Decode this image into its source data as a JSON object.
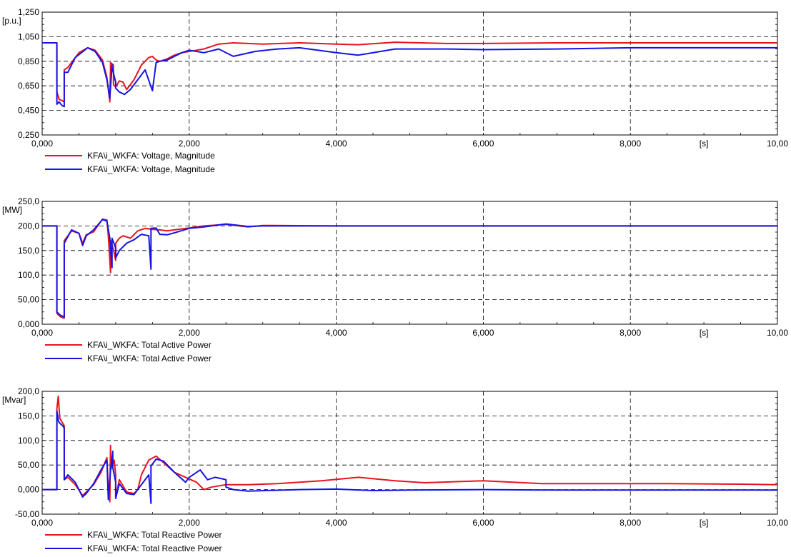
{
  "chart_data": [
    {
      "type": "line",
      "title": "",
      "xlabel": "[s]",
      "ylabel": "[p.u.]",
      "xlim": [
        0,
        10
      ],
      "ylim": [
        0.25,
        1.25
      ],
      "x_ticks": [
        "0,000",
        "2,000",
        "4,000",
        "6,000",
        "8,000",
        "10,00"
      ],
      "y_ticks": [
        "1,250",
        "1,050",
        "0,850",
        "0,650",
        "0,450",
        "0,250"
      ],
      "y_tick_values": [
        1.25,
        1.05,
        0.85,
        0.65,
        0.45,
        0.25
      ],
      "grid": true,
      "legend_position": "bottom-left",
      "series": [
        {
          "name": "KFA\\i_WKFA: Voltage, Magnitude",
          "color": "#e8141c",
          "x": [
            0.0,
            0.2,
            0.2,
            0.23,
            0.27,
            0.3,
            0.3,
            0.35,
            0.5,
            0.62,
            0.72,
            0.82,
            0.88,
            0.92,
            0.93,
            0.93,
            0.97,
            0.97,
            1.0,
            1.05,
            1.1,
            1.15,
            1.25,
            1.35,
            1.45,
            1.5,
            1.55,
            1.6,
            1.7,
            1.8,
            1.9,
            2.0,
            2.1,
            2.2,
            2.4,
            2.6,
            3.0,
            3.5,
            4.0,
            4.3,
            4.8,
            5.5,
            6.0,
            7.0,
            8.0,
            9.0,
            10.0
          ],
          "y": [
            1.0,
            1.0,
            0.6,
            0.54,
            0.53,
            0.52,
            0.78,
            0.8,
            0.92,
            0.96,
            0.94,
            0.86,
            0.72,
            0.52,
            0.8,
            0.84,
            0.82,
            0.66,
            0.64,
            0.69,
            0.68,
            0.62,
            0.7,
            0.82,
            0.88,
            0.89,
            0.86,
            0.85,
            0.87,
            0.9,
            0.92,
            0.93,
            0.94,
            0.95,
            0.99,
            1.0,
            0.99,
            1.0,
            0.99,
            0.985,
            1.005,
            0.995,
            0.995,
            1.0,
            1.0,
            1.0,
            1.0
          ]
        },
        {
          "name": "KFA\\i_WKFA: Voltage, Magnitude",
          "color": "#1414e6",
          "x": [
            0.0,
            0.2,
            0.2,
            0.23,
            0.27,
            0.3,
            0.3,
            0.35,
            0.45,
            0.62,
            0.72,
            0.82,
            0.88,
            0.92,
            0.95,
            0.95,
            1.0,
            1.0,
            1.05,
            1.12,
            1.2,
            1.3,
            1.4,
            1.5,
            1.55,
            1.6,
            1.7,
            1.8,
            1.9,
            2.0,
            2.2,
            2.4,
            2.6,
            2.9,
            3.2,
            3.5,
            4.0,
            4.3,
            4.8,
            5.5,
            6.0,
            7.0,
            8.0,
            9.0,
            10.0
          ],
          "y": [
            1.0,
            1.0,
            0.5,
            0.52,
            0.49,
            0.48,
            0.76,
            0.76,
            0.88,
            0.96,
            0.93,
            0.84,
            0.7,
            0.55,
            0.82,
            0.8,
            0.68,
            0.63,
            0.6,
            0.58,
            0.62,
            0.7,
            0.78,
            0.61,
            0.84,
            0.85,
            0.86,
            0.89,
            0.92,
            0.94,
            0.92,
            0.95,
            0.89,
            0.93,
            0.95,
            0.96,
            0.92,
            0.9,
            0.95,
            0.95,
            0.945,
            0.95,
            0.96,
            0.96,
            0.96
          ]
        }
      ]
    },
    {
      "type": "line",
      "title": "",
      "xlabel": "[s]",
      "ylabel": "[MW]",
      "xlim": [
        0,
        10
      ],
      "ylim": [
        0,
        250
      ],
      "x_ticks": [
        "0,000",
        "2,000",
        "4,000",
        "6,000",
        "8,000",
        "10,00"
      ],
      "y_ticks": [
        "250,0",
        "200,0",
        "150,0",
        "100,0",
        "50,00",
        "0,000"
      ],
      "y_tick_values": [
        250,
        200,
        150,
        100,
        50,
        0
      ],
      "grid": true,
      "legend_position": "bottom-left",
      "series": [
        {
          "name": "KFA\\i_WKFA: Total Active Power",
          "color": "#e8141c",
          "x": [
            0.0,
            0.2,
            0.2,
            0.25,
            0.3,
            0.3,
            0.4,
            0.5,
            0.55,
            0.6,
            0.7,
            0.82,
            0.88,
            0.9,
            0.93,
            0.93,
            0.97,
            1.0,
            1.0,
            1.05,
            1.1,
            1.2,
            1.3,
            1.4,
            1.5,
            1.6,
            1.7,
            1.8,
            2.0,
            2.2,
            2.5,
            2.8,
            3.0,
            4.0,
            5.0,
            6.0,
            7.0,
            8.0,
            9.0,
            10.0
          ],
          "y": [
            200,
            200,
            22,
            15,
            12,
            170,
            190,
            185,
            165,
            182,
            188,
            214,
            212,
            180,
            105,
            170,
            152,
            130,
            165,
            175,
            180,
            175,
            190,
            195,
            193,
            192,
            190,
            192,
            196,
            200,
            203,
            198,
            201,
            200,
            200,
            200,
            200,
            200,
            200,
            200
          ]
        },
        {
          "name": "KFA\\i_WKFA: Total Active Power",
          "color": "#1414e6",
          "x": [
            0.0,
            0.2,
            0.2,
            0.25,
            0.3,
            0.3,
            0.4,
            0.5,
            0.55,
            0.6,
            0.7,
            0.82,
            0.88,
            0.92,
            0.95,
            0.95,
            1.0,
            1.0,
            1.05,
            1.15,
            1.25,
            1.35,
            1.45,
            1.48,
            1.48,
            1.55,
            1.6,
            1.7,
            1.8,
            2.0,
            2.2,
            2.5,
            2.8,
            3.0,
            4.0,
            5.0,
            6.0,
            7.0,
            8.0,
            9.0,
            10.0
          ],
          "y": [
            200,
            200,
            25,
            18,
            15,
            165,
            192,
            185,
            160,
            180,
            192,
            213,
            210,
            175,
            115,
            175,
            155,
            135,
            150,
            165,
            172,
            183,
            180,
            112,
            195,
            196,
            183,
            182,
            186,
            195,
            198,
            204,
            199,
            200,
            200,
            200,
            200,
            200,
            200,
            200,
            200
          ]
        }
      ]
    },
    {
      "type": "line",
      "title": "",
      "xlabel": "[s]",
      "ylabel": "[Mvar]",
      "xlim": [
        0,
        10
      ],
      "ylim": [
        -50,
        200
      ],
      "x_ticks": [
        "0,000",
        "2,000",
        "4,000",
        "6,000",
        "8,000",
        "10,00"
      ],
      "y_ticks": [
        "200,0",
        "150,0",
        "100,0",
        "50,00",
        "0,000",
        "-50,00"
      ],
      "y_tick_values": [
        200,
        150,
        100,
        50,
        0,
        -50
      ],
      "grid": true,
      "legend_position": "bottom-left",
      "series": [
        {
          "name": "KFA\\i_WKFA: Total Reactive Power",
          "color": "#e8141c",
          "x": [
            0.0,
            0.2,
            0.2,
            0.22,
            0.24,
            0.28,
            0.3,
            0.3,
            0.35,
            0.45,
            0.55,
            0.6,
            0.7,
            0.8,
            0.88,
            0.9,
            0.92,
            0.93,
            0.93,
            0.98,
            1.0,
            1.0,
            1.05,
            1.15,
            1.25,
            1.3,
            1.35,
            1.45,
            1.55,
            1.65,
            1.8,
            1.95,
            2.1,
            2.2,
            2.3,
            2.5,
            2.8,
            3.2,
            3.8,
            4.3,
            4.8,
            5.2,
            6.0,
            6.8,
            7.5,
            8.5,
            9.5,
            10.0
          ],
          "y": [
            0,
            0,
            165,
            190,
            145,
            135,
            130,
            20,
            25,
            10,
            -12,
            -5,
            10,
            35,
            65,
            0,
            -25,
            90,
            40,
            60,
            30,
            -15,
            20,
            -5,
            -8,
            0,
            30,
            60,
            68,
            55,
            35,
            25,
            15,
            0,
            5,
            10,
            10,
            12,
            18,
            25,
            18,
            14,
            18,
            12,
            12,
            12,
            11,
            10
          ]
        },
        {
          "name": "KFA\\i_WKFA: Total Reactive Power",
          "color": "#1414e6",
          "x": [
            0.0,
            0.2,
            0.2,
            0.22,
            0.24,
            0.28,
            0.3,
            0.3,
            0.35,
            0.45,
            0.55,
            0.6,
            0.7,
            0.8,
            0.88,
            0.9,
            0.93,
            0.96,
            0.96,
            1.0,
            1.0,
            1.05,
            1.15,
            1.25,
            1.35,
            1.45,
            1.48,
            1.48,
            1.55,
            1.65,
            1.8,
            1.95,
            2.0,
            2.15,
            2.25,
            2.35,
            2.45,
            2.5,
            2.5,
            2.6,
            2.8,
            3.5,
            4.0,
            4.5,
            5.0,
            6.0,
            7.0,
            8.0,
            9.0,
            10.0
          ],
          "y": [
            0,
            0,
            160,
            140,
            135,
            130,
            125,
            20,
            30,
            15,
            -15,
            -8,
            12,
            40,
            60,
            -20,
            40,
            78,
            45,
            15,
            -18,
            12,
            -8,
            -10,
            10,
            30,
            -28,
            48,
            62,
            58,
            35,
            15,
            25,
            40,
            20,
            25,
            22,
            20,
            5,
            0,
            -3,
            0,
            1,
            -2,
            -1,
            0,
            -1,
            -1,
            -1,
            -1
          ]
        }
      ]
    }
  ]
}
